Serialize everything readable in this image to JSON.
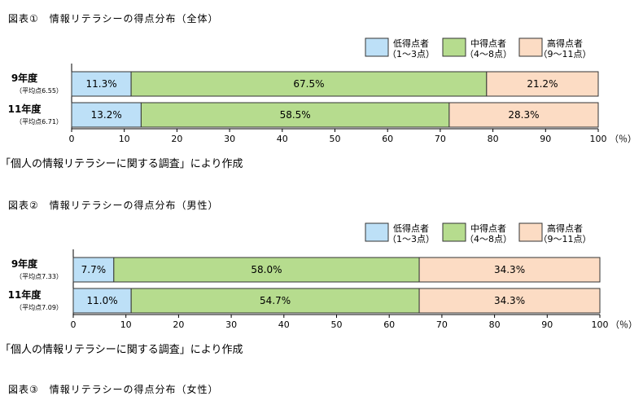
{
  "chart_data": [
    {
      "type": "bar",
      "stacked": true,
      "orientation": "horizontal",
      "title": "図表①　情報リテラシーの得点分布（全体）",
      "categories": [
        {
          "label": "9年度",
          "sub": "（平均点6.55）"
        },
        {
          "label": "11年度",
          "sub": "（平均点6.71）"
        }
      ],
      "series": [
        {
          "name": "低得点者",
          "range": "（1～3点）",
          "color": "#bde0f7",
          "values": [
            11.3,
            13.2
          ],
          "labels": [
            "11.3%",
            "13.2%"
          ]
        },
        {
          "name": "中得点者",
          "range": "（4～8点）",
          "color": "#b6dc8e",
          "values": [
            67.5,
            58.5
          ],
          "labels": [
            "67.5%",
            "58.5%"
          ]
        },
        {
          "name": "高得点者",
          "range": "（9～11点）",
          "color": "#fcdcc4",
          "values": [
            21.2,
            28.3
          ],
          "labels": [
            "21.2%",
            "28.3%"
          ]
        }
      ],
      "xlim": [
        0,
        100
      ],
      "xticks": [
        "0",
        "10",
        "20",
        "30",
        "40",
        "50",
        "60",
        "70",
        "80",
        "90",
        "100"
      ],
      "unit": "（％）",
      "legend": "top-right",
      "source": "「個人の情報リテラシーに関する調査」により作成"
    },
    {
      "type": "bar",
      "stacked": true,
      "orientation": "horizontal",
      "title": "図表②　情報リテラシーの得点分布（男性）",
      "categories": [
        {
          "label": "9年度",
          "sub": "（平均点7.33）"
        },
        {
          "label": "11年度",
          "sub": "（平均点7.09）"
        }
      ],
      "series": [
        {
          "name": "低得点者",
          "range": "（1～3点）",
          "color": "#bde0f7",
          "values": [
            7.7,
            11.0
          ],
          "labels": [
            "7.7%",
            "11.0%"
          ]
        },
        {
          "name": "中得点者",
          "range": "（4～8点）",
          "color": "#b6dc8e",
          "values": [
            58.0,
            54.7
          ],
          "labels": [
            "58.0%",
            "54.7%"
          ]
        },
        {
          "name": "高得点者",
          "range": "（9～11点）",
          "color": "#fcdcc4",
          "values": [
            34.3,
            34.3
          ],
          "labels": [
            "34.3%",
            "34.3%"
          ]
        }
      ],
      "xlim": [
        0,
        100
      ],
      "xticks": [
        "0",
        "10",
        "20",
        "30",
        "40",
        "50",
        "60",
        "70",
        "80",
        "90",
        "100"
      ],
      "unit": "（％）",
      "legend": "top-right",
      "source": "「個人の情報リテラシーに関する調査」により作成"
    }
  ],
  "figure3": {
    "title": "図表③　情報リテラシーの得点分布（女性）"
  }
}
